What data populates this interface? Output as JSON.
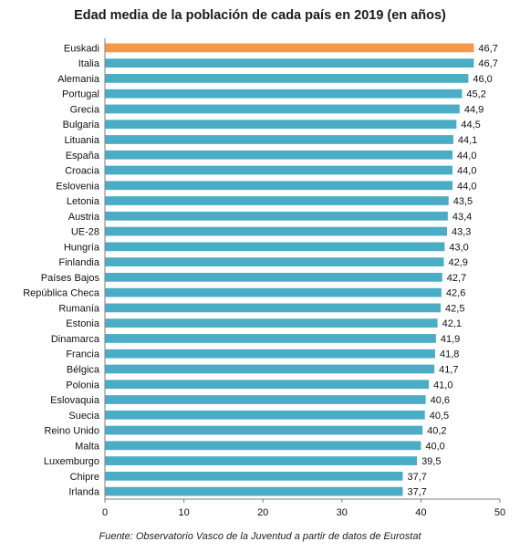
{
  "chart_data": {
    "type": "bar",
    "orientation": "horizontal",
    "title": "Edad media de la población de cada país  en 2019 (en años)",
    "categories": [
      "Euskadi",
      "Italia",
      "Alemania",
      "Portugal",
      "Grecia",
      "Bulgaria",
      "Lituania",
      "España",
      "Croacia",
      "Eslovenia",
      "Letonia",
      "Austria",
      "UE-28",
      "Hungría",
      "Finlandia",
      "Países Bajos",
      "República Checa",
      "Rumanía",
      "Estonia",
      "Dinamarca",
      "Francia",
      "Bélgica",
      "Polonia",
      "Eslovaquia",
      "Suecia",
      "Reino Unido",
      "Malta",
      "Luxemburgo",
      "Chipre",
      "Irlanda"
    ],
    "values": [
      46.7,
      46.7,
      46.0,
      45.2,
      44.9,
      44.5,
      44.1,
      44.0,
      44.0,
      44.0,
      43.5,
      43.4,
      43.3,
      43.0,
      42.9,
      42.7,
      42.6,
      42.5,
      42.1,
      41.9,
      41.8,
      41.7,
      41.0,
      40.6,
      40.5,
      40.2,
      40.0,
      39.5,
      37.7,
      37.7
    ],
    "value_labels": [
      "46,7",
      "46,7",
      "46,0",
      "45,2",
      "44,9",
      "44,5",
      "44,1",
      "44,0",
      "44,0",
      "44,0",
      "43,5",
      "43,4",
      "43,3",
      "43,0",
      "42,9",
      "42,7",
      "42,6",
      "42,5",
      "42,1",
      "41,9",
      "41,8",
      "41,7",
      "41,0",
      "40,6",
      "40,5",
      "40,2",
      "40,0",
      "39,5",
      "37,7",
      "37,7"
    ],
    "highlight_category": "Euskadi",
    "colors": {
      "bar": "#4bacc6",
      "highlight": "#f79646",
      "axis": "#7f7f7f"
    },
    "xlim": [
      0,
      50
    ],
    "xticks": [
      0,
      10,
      20,
      30,
      40,
      50
    ],
    "xlabel": "",
    "ylabel": "",
    "grid": false,
    "legend": "none",
    "source": "Fuente: Observatorio Vasco de la Juventud a partir de datos de Eurostat"
  }
}
